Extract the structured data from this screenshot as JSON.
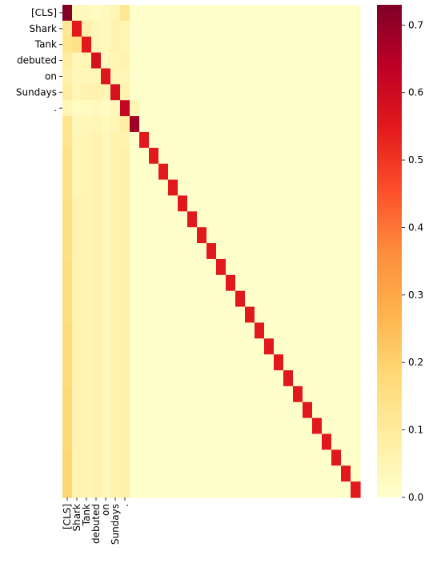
{
  "chart_data": {
    "type": "heatmap",
    "title": "",
    "xlabel": "",
    "ylabel": "",
    "n_rows": 31,
    "n_cols": 31,
    "row_labels": [
      "[CLS]",
      "Shark",
      "Tank",
      "debuted",
      "on",
      "Sundays",
      "."
    ],
    "col_labels": [
      "[CLS]",
      "Shark",
      "Tank",
      "debuted",
      "on",
      "Sundays",
      "."
    ],
    "colormap": [
      "#ffffcc",
      "#ffeda0",
      "#fed976",
      "#feb24c",
      "#fd8d3c",
      "#fc4e2a",
      "#e31a1c",
      "#bd0026",
      "#800026"
    ],
    "vmin": 0,
    "vmax": 0.73,
    "colorbar_ticks": [
      "0.0",
      "0.1",
      "0.2",
      "0.3",
      "0.4",
      "0.5",
      "0.6",
      "0.7"
    ],
    "colorbar_tick_values": [
      0,
      0.1,
      0.2,
      0.3,
      0.4,
      0.5,
      0.6,
      0.7
    ],
    "values": [
      [
        0.73,
        0.03,
        0.03,
        0.02,
        0.03,
        0.05,
        0.12,
        0,
        0,
        0,
        0,
        0,
        0,
        0,
        0,
        0,
        0,
        0,
        0,
        0,
        0,
        0,
        0,
        0,
        0,
        0,
        0,
        0,
        0,
        0,
        0
      ],
      [
        0.12,
        0.55,
        0.07,
        0.04,
        0.03,
        0.06,
        0.05,
        0,
        0,
        0,
        0,
        0,
        0,
        0,
        0,
        0,
        0,
        0,
        0,
        0,
        0,
        0,
        0,
        0,
        0,
        0,
        0,
        0,
        0,
        0,
        0
      ],
      [
        0.13,
        0.14,
        0.55,
        0.04,
        0.03,
        0.06,
        0.05,
        0,
        0,
        0,
        0,
        0,
        0,
        0,
        0,
        0,
        0,
        0,
        0,
        0,
        0,
        0,
        0,
        0,
        0,
        0,
        0,
        0,
        0,
        0,
        0
      ],
      [
        0.09,
        0.05,
        0.05,
        0.58,
        0.03,
        0.05,
        0.06,
        0,
        0,
        0,
        0,
        0,
        0,
        0,
        0,
        0,
        0,
        0,
        0,
        0,
        0,
        0,
        0,
        0,
        0,
        0,
        0,
        0,
        0,
        0,
        0
      ],
      [
        0.07,
        0.04,
        0.04,
        0.05,
        0.56,
        0.05,
        0.05,
        0,
        0,
        0,
        0,
        0,
        0,
        0,
        0,
        0,
        0,
        0,
        0,
        0,
        0,
        0,
        0,
        0,
        0,
        0,
        0,
        0,
        0,
        0,
        0
      ],
      [
        0.09,
        0.05,
        0.06,
        0.06,
        0.05,
        0.58,
        0.06,
        0,
        0,
        0,
        0,
        0,
        0,
        0,
        0,
        0,
        0,
        0,
        0,
        0,
        0,
        0,
        0,
        0,
        0,
        0,
        0,
        0,
        0,
        0,
        0
      ],
      [
        0.05,
        0.02,
        0.02,
        0.03,
        0.02,
        0.04,
        0.62,
        0.05,
        0,
        0,
        0,
        0,
        0,
        0,
        0,
        0,
        0,
        0,
        0,
        0,
        0,
        0,
        0,
        0,
        0,
        0,
        0,
        0,
        0,
        0,
        0
      ],
      [
        0.13,
        0.04,
        0.04,
        0.05,
        0.03,
        0.05,
        0.08,
        0.68,
        0,
        0,
        0,
        0,
        0,
        0,
        0,
        0,
        0,
        0,
        0,
        0,
        0,
        0,
        0,
        0,
        0,
        0,
        0,
        0,
        0,
        0,
        0
      ],
      [
        0.13,
        0.05,
        0.05,
        0.06,
        0.04,
        0.06,
        0.06,
        0,
        0.55,
        0,
        0,
        0,
        0,
        0,
        0,
        0,
        0,
        0,
        0,
        0,
        0,
        0,
        0,
        0,
        0,
        0,
        0,
        0,
        0,
        0,
        0
      ],
      [
        0.14,
        0.05,
        0.05,
        0.06,
        0.04,
        0.06,
        0.07,
        0,
        0,
        0.55,
        0,
        0,
        0,
        0,
        0,
        0,
        0,
        0,
        0,
        0,
        0,
        0,
        0,
        0,
        0,
        0,
        0,
        0,
        0,
        0,
        0
      ],
      [
        0.14,
        0.05,
        0.05,
        0.06,
        0.04,
        0.06,
        0.07,
        0,
        0,
        0,
        0.55,
        0,
        0,
        0,
        0,
        0,
        0,
        0,
        0,
        0,
        0,
        0,
        0,
        0,
        0,
        0,
        0,
        0,
        0,
        0,
        0
      ],
      [
        0.14,
        0.05,
        0.05,
        0.06,
        0.04,
        0.06,
        0.07,
        0,
        0,
        0,
        0,
        0.55,
        0,
        0,
        0,
        0,
        0,
        0,
        0,
        0,
        0,
        0,
        0,
        0,
        0,
        0,
        0,
        0,
        0,
        0,
        0
      ],
      [
        0.15,
        0.06,
        0.05,
        0.06,
        0.04,
        0.06,
        0.07,
        0,
        0,
        0,
        0,
        0,
        0.55,
        0,
        0,
        0,
        0,
        0,
        0,
        0,
        0,
        0,
        0,
        0,
        0,
        0,
        0,
        0,
        0,
        0,
        0
      ],
      [
        0.15,
        0.06,
        0.05,
        0.06,
        0.04,
        0.06,
        0.07,
        0,
        0,
        0,
        0,
        0,
        0,
        0.55,
        0,
        0,
        0,
        0,
        0,
        0,
        0,
        0,
        0,
        0,
        0,
        0,
        0,
        0,
        0,
        0,
        0
      ],
      [
        0.15,
        0.06,
        0.05,
        0.06,
        0.04,
        0.06,
        0.07,
        0,
        0,
        0,
        0,
        0,
        0,
        0,
        0.55,
        0,
        0,
        0,
        0,
        0,
        0,
        0,
        0,
        0,
        0,
        0,
        0,
        0,
        0,
        0,
        0
      ],
      [
        0.15,
        0.06,
        0.05,
        0.06,
        0.04,
        0.06,
        0.07,
        0,
        0,
        0,
        0,
        0,
        0,
        0,
        0,
        0.55,
        0,
        0,
        0,
        0,
        0,
        0,
        0,
        0,
        0,
        0,
        0,
        0,
        0,
        0,
        0
      ],
      [
        0.16,
        0.06,
        0.05,
        0.06,
        0.04,
        0.06,
        0.07,
        0,
        0,
        0,
        0,
        0,
        0,
        0,
        0,
        0,
        0.55,
        0,
        0,
        0,
        0,
        0,
        0,
        0,
        0,
        0,
        0,
        0,
        0,
        0,
        0
      ],
      [
        0.16,
        0.06,
        0.05,
        0.06,
        0.04,
        0.06,
        0.07,
        0,
        0,
        0,
        0,
        0,
        0,
        0,
        0,
        0,
        0,
        0.55,
        0,
        0,
        0,
        0,
        0,
        0,
        0,
        0,
        0,
        0,
        0,
        0,
        0
      ],
      [
        0.16,
        0.06,
        0.05,
        0.06,
        0.04,
        0.06,
        0.07,
        0,
        0,
        0,
        0,
        0,
        0,
        0,
        0,
        0,
        0,
        0,
        0.55,
        0,
        0,
        0,
        0,
        0,
        0,
        0,
        0,
        0,
        0,
        0,
        0
      ],
      [
        0.16,
        0.06,
        0.05,
        0.06,
        0.04,
        0.06,
        0.07,
        0,
        0,
        0,
        0,
        0,
        0,
        0,
        0,
        0,
        0,
        0,
        0,
        0.55,
        0,
        0,
        0,
        0,
        0,
        0,
        0,
        0,
        0,
        0,
        0
      ],
      [
        0.17,
        0.06,
        0.05,
        0.06,
        0.04,
        0.06,
        0.07,
        0,
        0,
        0,
        0,
        0,
        0,
        0,
        0,
        0,
        0,
        0,
        0,
        0,
        0.55,
        0,
        0,
        0,
        0,
        0,
        0,
        0,
        0,
        0,
        0
      ],
      [
        0.17,
        0.06,
        0.05,
        0.06,
        0.04,
        0.06,
        0.07,
        0,
        0,
        0,
        0,
        0,
        0,
        0,
        0,
        0,
        0,
        0,
        0,
        0,
        0,
        0.55,
        0,
        0,
        0,
        0,
        0,
        0,
        0,
        0,
        0
      ],
      [
        0.17,
        0.06,
        0.05,
        0.06,
        0.04,
        0.06,
        0.07,
        0,
        0,
        0,
        0,
        0,
        0,
        0,
        0,
        0,
        0,
        0,
        0,
        0,
        0,
        0,
        0.55,
        0,
        0,
        0,
        0,
        0,
        0,
        0,
        0
      ],
      [
        0.17,
        0.06,
        0.05,
        0.06,
        0.04,
        0.06,
        0.07,
        0,
        0,
        0,
        0,
        0,
        0,
        0,
        0,
        0,
        0,
        0,
        0,
        0,
        0,
        0,
        0,
        0.55,
        0,
        0,
        0,
        0,
        0,
        0,
        0
      ],
      [
        0.18,
        0.06,
        0.05,
        0.06,
        0.04,
        0.06,
        0.07,
        0,
        0,
        0,
        0,
        0,
        0,
        0,
        0,
        0,
        0,
        0,
        0,
        0,
        0,
        0,
        0,
        0,
        0.55,
        0,
        0,
        0,
        0,
        0,
        0
      ],
      [
        0.18,
        0.06,
        0.05,
        0.06,
        0.04,
        0.06,
        0.07,
        0,
        0,
        0,
        0,
        0,
        0,
        0,
        0,
        0,
        0,
        0,
        0,
        0,
        0,
        0,
        0,
        0,
        0,
        0.55,
        0,
        0,
        0,
        0,
        0
      ],
      [
        0.18,
        0.06,
        0.05,
        0.06,
        0.04,
        0.06,
        0.07,
        0,
        0,
        0,
        0,
        0,
        0,
        0,
        0,
        0,
        0,
        0,
        0,
        0,
        0,
        0,
        0,
        0,
        0,
        0,
        0.55,
        0,
        0,
        0,
        0
      ],
      [
        0.18,
        0.06,
        0.05,
        0.06,
        0.04,
        0.06,
        0.07,
        0,
        0,
        0,
        0,
        0,
        0,
        0,
        0,
        0,
        0,
        0,
        0,
        0,
        0,
        0,
        0,
        0,
        0,
        0,
        0,
        0.55,
        0,
        0,
        0
      ],
      [
        0.19,
        0.06,
        0.05,
        0.06,
        0.04,
        0.06,
        0.07,
        0,
        0,
        0,
        0,
        0,
        0,
        0,
        0,
        0,
        0,
        0,
        0,
        0,
        0,
        0,
        0,
        0,
        0,
        0,
        0,
        0,
        0.55,
        0,
        0
      ],
      [
        0.19,
        0.06,
        0.05,
        0.06,
        0.04,
        0.06,
        0.07,
        0,
        0,
        0,
        0,
        0,
        0,
        0,
        0,
        0,
        0,
        0,
        0,
        0,
        0,
        0,
        0,
        0,
        0,
        0,
        0,
        0,
        0,
        0.55,
        0
      ],
      [
        0.19,
        0.06,
        0.05,
        0.06,
        0.04,
        0.06,
        0.07,
        0,
        0,
        0,
        0,
        0,
        0,
        0,
        0,
        0,
        0,
        0,
        0,
        0,
        0,
        0,
        0,
        0,
        0,
        0,
        0,
        0,
        0,
        0,
        0.55
      ]
    ]
  }
}
